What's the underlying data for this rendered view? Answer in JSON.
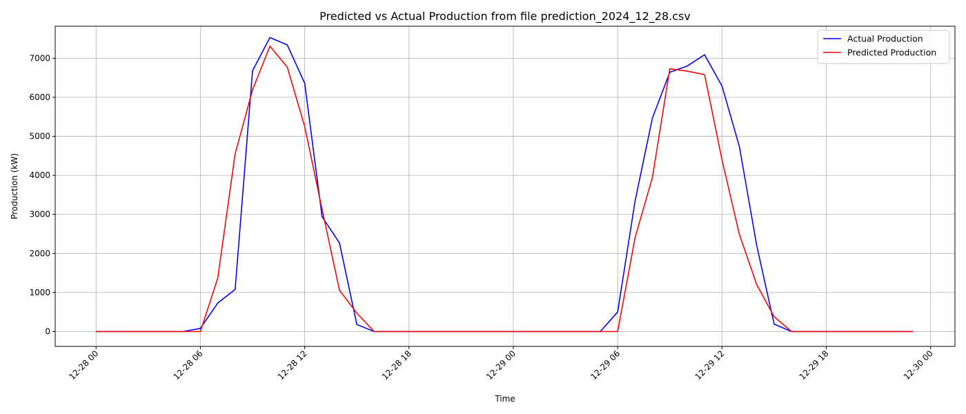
{
  "chart_data": {
    "type": "line",
    "title": "Predicted vs Actual Production from file prediction_2024_12_28.csv",
    "xlabel": "Time",
    "ylabel": "Production (kW)",
    "x_ticks": [
      "12-28 00",
      "12-28 06",
      "12-28 12",
      "12-28 18",
      "12-29 00",
      "12-29 06",
      "12-29 12",
      "12-29 18",
      "12-30 00"
    ],
    "x_tick_hours": [
      0,
      6,
      12,
      18,
      24,
      30,
      36,
      42,
      48
    ],
    "xlim_hours": [
      -2.35,
      49.4
    ],
    "y_ticks": [
      0,
      1000,
      2000,
      3000,
      4000,
      5000,
      6000,
      7000
    ],
    "ylim": [
      -380,
      7820
    ],
    "grid": true,
    "legend_position": "upper right",
    "x_hours": [
      0,
      1,
      2,
      3,
      4,
      5,
      6,
      7,
      8,
      9,
      10,
      11,
      12,
      13,
      14,
      15,
      16,
      17,
      18,
      19,
      20,
      21,
      22,
      23,
      24,
      25,
      26,
      27,
      28,
      29,
      30,
      31,
      32,
      33,
      34,
      35,
      36,
      37,
      38,
      39,
      40,
      41,
      42,
      43,
      44,
      45,
      46,
      47
    ],
    "series": [
      {
        "name": "Actual Production",
        "color": "#0000ff",
        "values": [
          0,
          0,
          0,
          0,
          0,
          0,
          80,
          730,
          1080,
          6680,
          7530,
          7340,
          6360,
          2940,
          2270,
          180,
          0,
          0,
          0,
          0,
          0,
          0,
          0,
          0,
          0,
          0,
          0,
          0,
          0,
          0,
          500,
          3340,
          5470,
          6640,
          6800,
          7090,
          6290,
          4740,
          2200,
          190,
          0,
          0,
          0,
          0,
          0,
          0,
          0,
          0
        ]
      },
      {
        "name": "Predicted Production",
        "color": "#ff0000",
        "values": [
          0,
          0,
          0,
          0,
          0,
          0,
          0,
          1370,
          4550,
          6190,
          7310,
          6770,
          5250,
          3130,
          1060,
          470,
          0,
          0,
          0,
          0,
          0,
          0,
          0,
          0,
          0,
          0,
          0,
          0,
          0,
          0,
          0,
          2400,
          3950,
          6730,
          6670,
          6580,
          4400,
          2490,
          1200,
          380,
          0,
          0,
          0,
          0,
          0,
          0,
          0,
          0
        ]
      }
    ]
  }
}
